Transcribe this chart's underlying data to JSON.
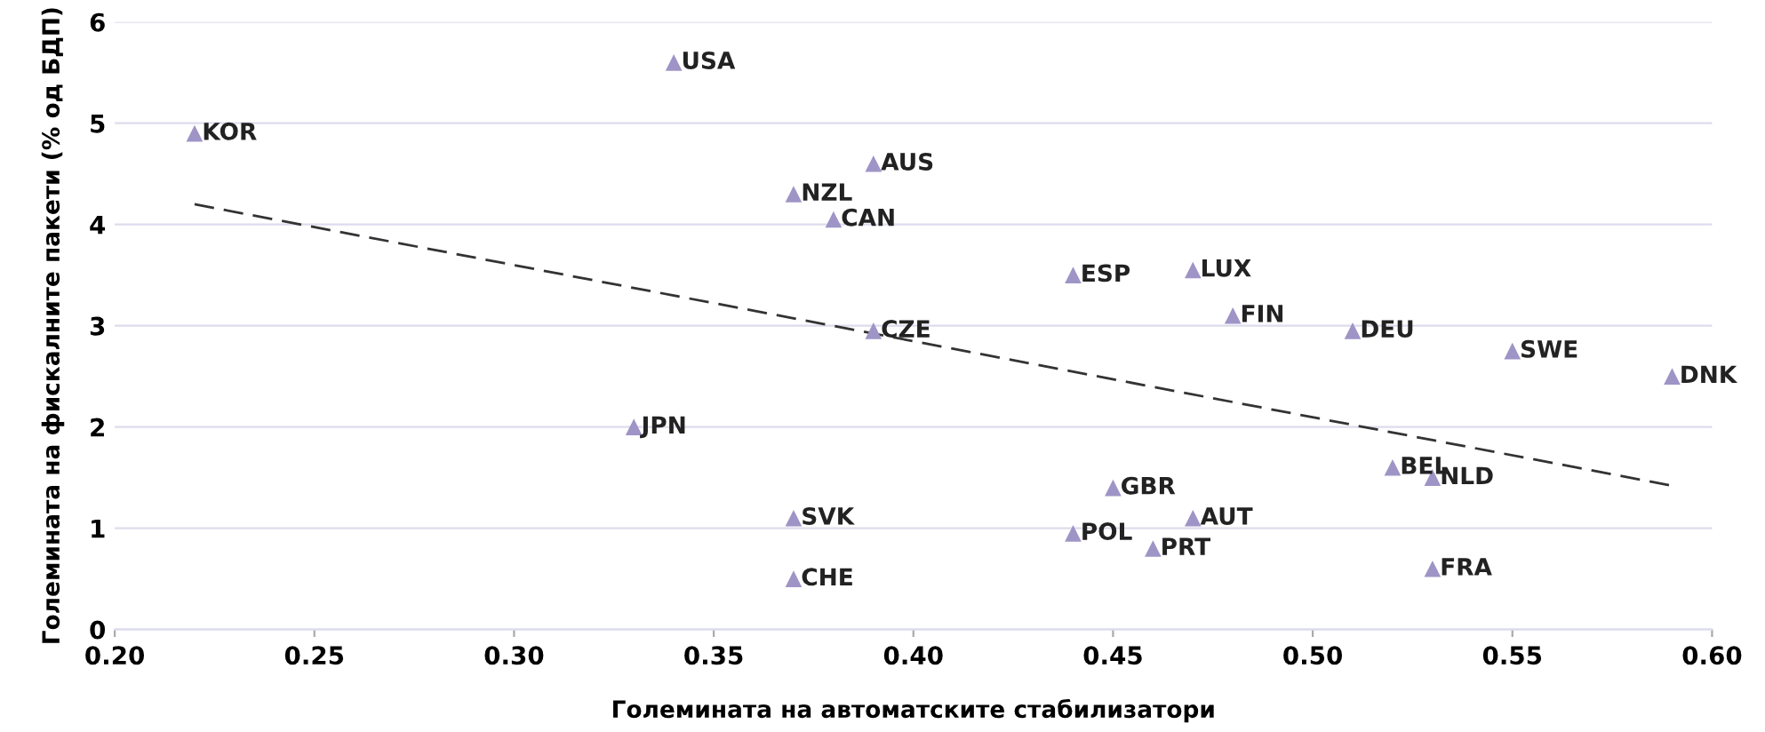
{
  "chart_data": {
    "type": "scatter",
    "xlabel": "Големината на автоматските стабилизатори",
    "ylabel": "Големината на фискалните пакети (% од БДП)",
    "xlim": [
      0.2,
      0.6
    ],
    "xticks": [
      {
        "value": 0.2,
        "label": "0.20"
      },
      {
        "value": 0.25,
        "label": "0.25"
      },
      {
        "value": 0.3,
        "label": "0.30"
      },
      {
        "value": 0.35,
        "label": "0.35"
      },
      {
        "value": 0.4,
        "label": "0.40"
      },
      {
        "value": 0.45,
        "label": "0.45"
      },
      {
        "value": 0.5,
        "label": "0.50"
      },
      {
        "value": 0.55,
        "label": "0.55"
      },
      {
        "value": 0.6,
        "label": "0.60"
      }
    ],
    "ylim": [
      0,
      6
    ],
    "yticks": [
      0,
      1,
      2,
      3,
      4,
      5,
      6
    ],
    "grid": "y",
    "series": [
      {
        "marker": "triangle",
        "color": "#9f94c6",
        "x": [
          0.22,
          0.34,
          0.39,
          0.37,
          0.38,
          0.44,
          0.47,
          0.48,
          0.39,
          0.51,
          0.55,
          0.59,
          0.33,
          0.52,
          0.53,
          0.45,
          0.37,
          0.47,
          0.44,
          0.46,
          0.53,
          0.37
        ],
        "values": [
          4.9,
          5.6,
          4.6,
          4.3,
          4.05,
          3.5,
          3.55,
          3.1,
          2.95,
          2.95,
          2.75,
          2.5,
          2.0,
          1.6,
          1.5,
          1.4,
          1.1,
          1.1,
          0.95,
          0.8,
          0.6,
          0.5
        ]
      },
      {
        "type": "line",
        "color": "#333333",
        "line_style": "dashed",
        "x": [
          0.22,
          0.59
        ],
        "values": [
          4.2,
          1.42
        ]
      }
    ],
    "annotations": [
      {
        "text": "KOR",
        "x": 0.22,
        "y": 4.9
      },
      {
        "text": "USA",
        "x": 0.34,
        "y": 5.6
      },
      {
        "text": "AUS",
        "x": 0.39,
        "y": 4.6
      },
      {
        "text": "NZL",
        "x": 0.37,
        "y": 4.3
      },
      {
        "text": "CAN",
        "x": 0.38,
        "y": 4.05
      },
      {
        "text": "ESP",
        "x": 0.44,
        "y": 3.5
      },
      {
        "text": "LUX",
        "x": 0.47,
        "y": 3.55
      },
      {
        "text": "FIN",
        "x": 0.48,
        "y": 3.1
      },
      {
        "text": "CZE",
        "x": 0.39,
        "y": 2.95
      },
      {
        "text": "DEU",
        "x": 0.51,
        "y": 2.95
      },
      {
        "text": "SWE",
        "x": 0.55,
        "y": 2.75
      },
      {
        "text": "DNK",
        "x": 0.59,
        "y": 2.5
      },
      {
        "text": "JPN",
        "x": 0.33,
        "y": 2.0
      },
      {
        "text": "BEL",
        "x": 0.52,
        "y": 1.6
      },
      {
        "text": "NLD",
        "x": 0.53,
        "y": 1.5
      },
      {
        "text": "GBR",
        "x": 0.45,
        "y": 1.4
      },
      {
        "text": "SVK",
        "x": 0.37,
        "y": 1.1
      },
      {
        "text": "AUT",
        "x": 0.47,
        "y": 1.1
      },
      {
        "text": "POL",
        "x": 0.44,
        "y": 0.95
      },
      {
        "text": "PRT",
        "x": 0.46,
        "y": 0.8
      },
      {
        "text": "FRA",
        "x": 0.53,
        "y": 0.6
      },
      {
        "text": "CHE",
        "x": 0.37,
        "y": 0.5
      }
    ]
  }
}
